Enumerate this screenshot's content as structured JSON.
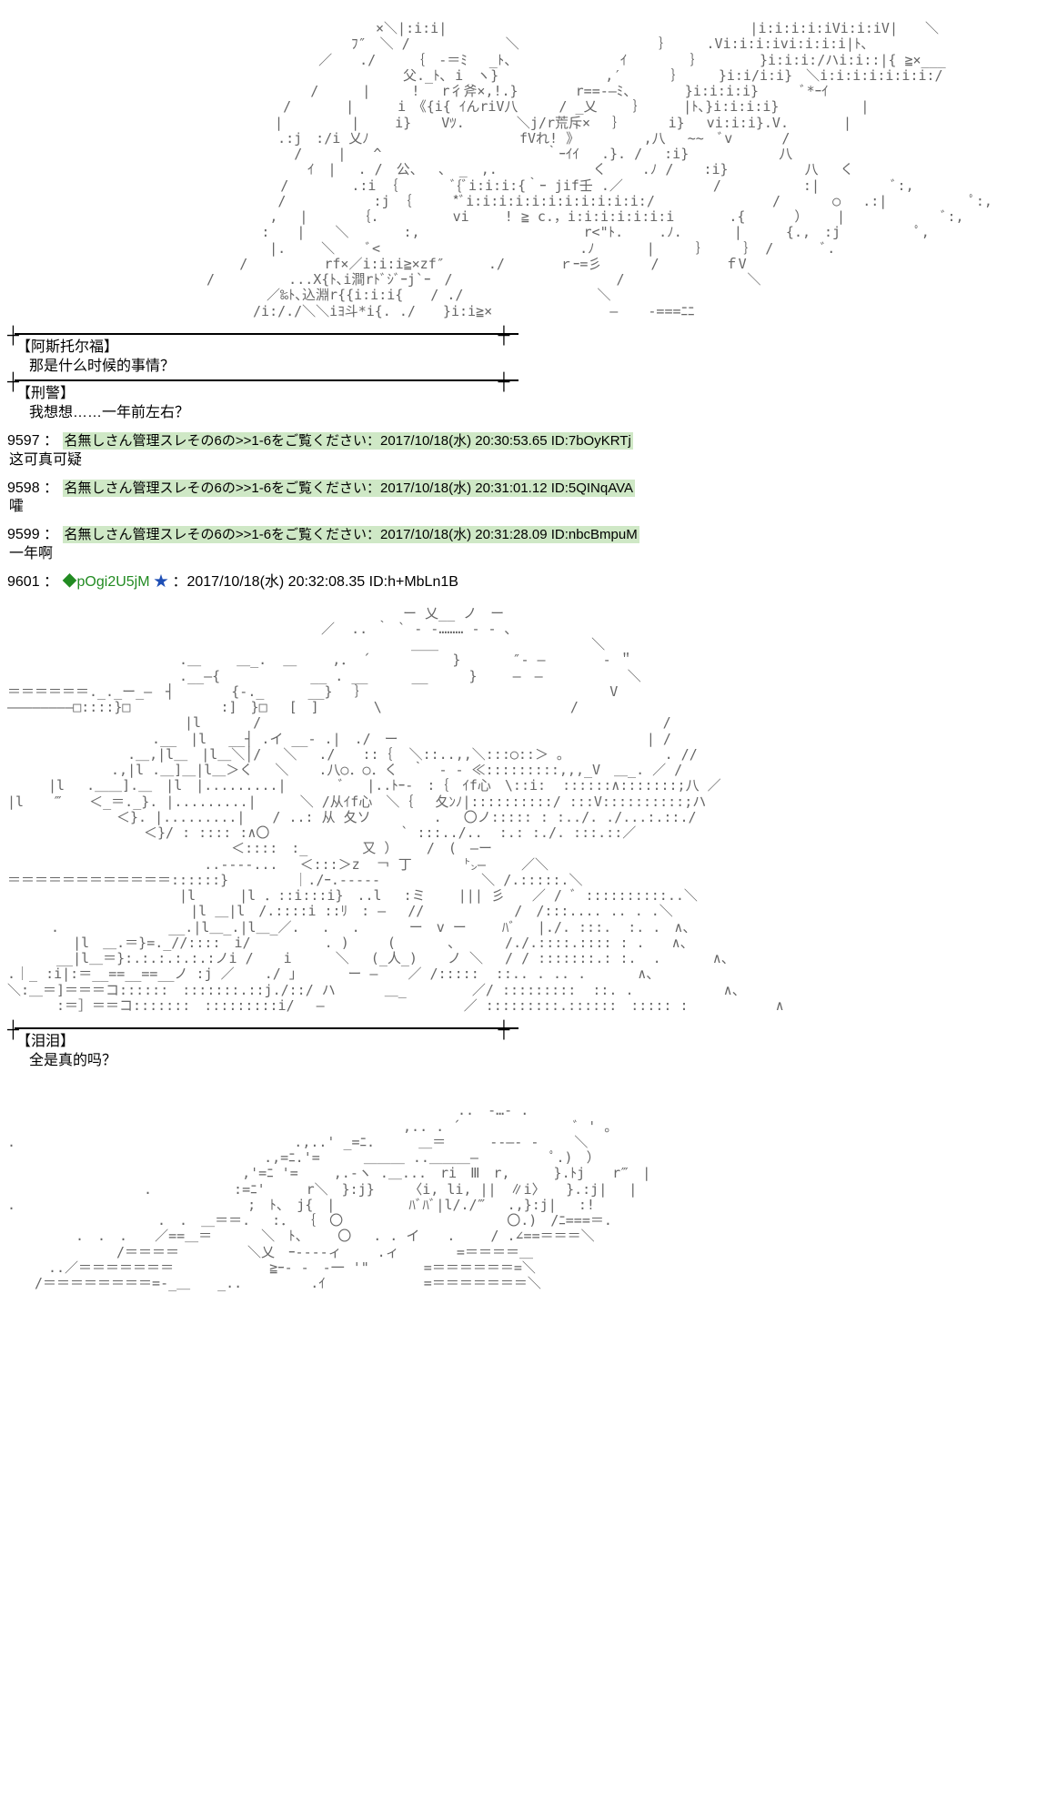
{
  "ascii1": "　　　　　　　　　　　　　　　　　　　　　　　　　　　×＼|:i:i|　　　　　　　　　　　　 　 　 　 　 　 　 |i:i:i:i:iVi:i:iV|　　＼\n　　　　　　　　　　　　　　　　　　　　　　　 　 ﾌ″　＼ / 　 　 　 　 ＼ 　 　 　 　 　 　 ｝　　　.Vi:i:i:ivi:i:i:i|ﾄ､\n　　　　　　　　　　　　　　　 　 　 　　　　／　　./　　 ｛　-＝ﾐ　 _ﾄ、　 　 　 　 　 ｲ　　　 　｝　　　　 }i:i:i:/ハi:i::|{ ≧×___\n　　　　　　　　　　　　　　　　　　　　　　　　　　　　　父._ﾄ､ i　ヽ}　　　　 　 　 ,′　　　 ｝　　　}i:i/i:i}　＼i:i:i:i:i:i:i:/\n　　　　　　　　　　　　 　 　 　 　 　 　 /　 　 |　　　!　 r彳斧×,!.}　　 　 r==-―ﾐ、　　　　}i:i:i:i}　　　ﾞ*ｰｲ\n　　　　　　　　　　　　　 　　　　　　 /　　　　|　 　 i　《{i{ ｲんriV八　　　/ _乂　　 ｝　 　 |ﾄ､}i:i:i:i}　　　　　　|\n　　　　　　　　　　　　　 　　　　　　|　　　　　|　　 i} 　 Vﾂ. 　 　 ＼j/r荒斥×　 ｝　　　 i}　 vi:i:i}.V.　　　　|\n　 　　　　　　　　　　　　　　　　 　 .:j　:/i 乂ﾉ　　　　 　 　 　 　 fVれ! 》　　　 　 ,八　 ~~　ﾞv　　　 /\n　　　　　　 　 　 　 　 　 　 　 　 　 /　　 |　　^　　　　　　　　　　　　｀ｰｲｲ　 .}. /　 :i}　　　　　　 八\n　　　　　　　　　　　　　　　　　　　　　　ｲ　|　 . /　公、　 ､　_　,.　　　　　　　く　　 .ﾉ / 　 :i}　　　　　 八　 く\n　　　　　 　 　 　 　 　 　 　 　 　 /　　　　 .:i ｛　　 　 ﾞ{ﾞi:i:i:{｀ｰ jif壬 .／　　　　　　 /　　　　　　:|　　 　　 ﾞ:,\n 　 　 　 　 　 　 　 　 　 　 　 　 / 　 　 　 　:j ｛　　　*ﾞi:i:i:i:i:i:i:i:i:i:i:/ 　 　 　 　 　 / 　 　 ○　 .:|　　　　　　ﾟ:,\n　 　 　 　 　 　 　 　 　 　 　 　 ,　 |　　　 ｛. 　 　 　 vi　 　! ≧ c.，i:i:i:i:i:i:i　　　　.{　　　 ）　　 |　　　　　　　ﾞ:,\n　　 　 　 　 　 　 　 　 　 　 　 :　　| 　 ＼　　　　:,　　　　　　　　　　　　r<\"ﾄ.　　 .ﾉ. 　 　 |　 　 {.,　:j 　 　 　 ﾟ,\n　　　　　　　　　　　　　　　　　 　 |.　　 ＼　　 ﾞ<　　　　　　　　　　　　　　 .ﾉ 　 　 |　　　｝　　　｝ / 　 　 ﾞ.\n　　 　 　 　 　 　 　 　 　 　 /　 　　　　rf×／i:i:i≧×zf″ 　　 ./　　　　ｒｰ=彡　　　 /　 　 　 ｆV\n　　　　　　　　　　　　　　 / 　 　 　 ...X{ﾄ､i澗rﾄﾞｼﾞｰj`ｰ　/　　　　　　　　　　　　/　　　　　　　　　＼\n　　　　　　　　　　　　　　　　　　　／‰ﾄ､込淵r{{i:i:i{　　/ ./ 　 　 　　　　　　＼\n　　　　　　　　　　　　　　　　　　/i:/./＼＼iﾖ斗*i{. ./　　}i:i≧× 　 　 　 　 　 ― 　 -===ﾆﾆ",
  "speaker1": "【阿斯托尔福】",
  "dialogue1": "那是什么时候的事情？",
  "speaker2": "【刑警】",
  "dialogue2": "我想想……一年前左右？",
  "posts": [
    {
      "no": "9597",
      "header": "名無しさん管理スレその6の>>1-6をご覧ください：2017/10/18(水) 20:30:53.65 ID:7bOyKRTj",
      "body": "这可真可疑"
    },
    {
      "no": "9598",
      "header": "名無しさん管理スレその6の>>1-6をご覧ください：2017/10/18(水) 20:31:01.12 ID:5QINqAVA",
      "body": "嚯"
    },
    {
      "no": "9599",
      "header": "名無しさん管理スレその6の>>1-6をご覧ください：2017/10/18(水) 20:31:28.09 ID:nbcBmpuM",
      "body": "一年啊"
    }
  ],
  "post9601": {
    "no": "9601",
    "trip": "◆pOgi2U5jM",
    "star": "★",
    "meta": "：2017/10/18(水) 20:32:08.35 ID:h+MbLn1B"
  },
  "ascii2": "　　　　　　　　　　　　　　　　　　　　　　　　　　　　　ー 乂__ ノ　ー\n　　　　　　　　　　　　　　　　　　　　　　　／  .. ｀ ` ‐ ‐……… ‐ ‐ ､\n　　　　　　　　　　　　　　　　　　　　　　　　　　　　　 ＿＿　　　　　　　　　　  ＼\n　　　　　　　　　　　　 .＿　　 ＿_.  ＿　　 ,． ´　　　　　　} 　 　 ″‐ ―　　 　 ‐ ＂\n　　　　　　　　　　　　 .__―{　　　　　　 __ . __　 　 __　　　}　　 ―　―　　　　 　 ＼\n＝＝＝＝＝＝._._ー_―　┤　　 　 {-._　 　 __}　 ｝　　　　　　　　 　 　 　 　 　 　 V\n――――――――□::::}□　　　　　　 :]　}□　 [　]　　　　\\ 　  　　　　　　　　　　　/\n　　　　　　　　　　　　　|l 　 　 /　　 　 　 　 　 　 　 　 　 　 　　　　　 　 　　　 　 /\n　　　　　　　　　　 .__　|l　 __┤ .イ __- .|　./　ー　　　　　 　 　　　　 　 　 　 　 | /\n　　　　　　　   .＿,|l＿　|l＿＼│/　 ＼　 ./　　::｛  ＼::..,,＼:::○::＞ ｡ 　 　　 　 　. //\n　　　　　　　 .,|l .＿]＿|l＿＞く　 ＼ 　 .八○．○．く　｀　- - ≪:::::::::,,,_V　＿_. ／ /\n　　　|l　 .＿＿].＿　|l　|.........| 　 　 ﾞ 　|..ﾄｰ-　:｛　ｲf心　\\::i:  ::::::∧:::::::;八 ／\n|l　  ‴　　＜_＝._}. |.........| 　 　＼ /从ｲf心　＼｛　 夂ﾝﾉ|::::::::::/ :::V::::::::::;ハ\n　　　　　　　　＜}. |.........|　　/ ..: 从 夂ソ　　　　 .　 〇ノ::::: : :../. ./...:.::./\n　　　　　　　　　　＜}/ : :::: :∧〇　　　　　　　　　 ` :::../..  :.: :./. :::.::／\n　　　　　　　　　　　　　 　   ＜::::　:_　　　　又 ）　 　/　(　―ー\n　 　 　 　 　 　 　 　 　 ..----... 　＜:::＞z  ￢ 丁 　 　 ㌧―　　 ／＼\n＝＝＝＝＝＝＝＝＝＝＝＝::::::}　 　 　 ｜./ｰ.-----　　 　 　 　 ＼ /.:::::.＼\n　　　　　　　　　　　　 |l　 　 |l ．::i:::i}　..l　 :ミ    ||| 彡　　／ / ﾞ ::::::::::..＼\n　　　　　　　　 　 　 　 |l ＿|l　/.::::i ::ﾘ　: ―　 //　　　　　　 /　/:::.... .. . .＼\n 　　 .　　 　　   　 __.|l＿_.|l＿_／.　 .　 .　　 　ー　v ー 　　ﾊﾞ　 |./. :::.  :. .　∧、　\n　　  　 |l　＿.＝}=._//::::　i/ 　 　 　 . )  　 ( 　 　 、 　 　/./.::::.:::: : .　　∧、\n　　　 __|l＿＝}:.:.:.:.:.:ノi / 　 i 　 　＼ 　(_人_) 　 ノ ＼　 / / :::::::.: :.  .　  　 ∧、\n.｜_ :i|:＝__==__==__ノ :j ／ 　 ./ ｣ 　 　 ー — 　 ／ /:::::  ::.. . .. .　　   ∧、\n＼:＿＝]＝＝＝コ::::::　:::::::.::j./::/ ハ　　　 ＿_　 　 　 ／/ :::::::::  ::. . 　  　  　 ∧、\n　　　 :＝］＝＝コ:::::::　:::::::::i/　 ― 　　　　　　　　　 ／ :::::::::.::::::　::::: :　　  　  　∧",
  "speaker3": "【泪泪】",
  "dialogue3": "全是真的吗？",
  "ascii3": "　　　　　　　　　　　　　　　　　　　　　　　　　　　　　　　　　..　‐…- .\n　　　　　　　　　　　　　　　　　　　　　　　　　　　　　,.. . ´ 　 　 　 　 　 ﾞ ' ｡\n.　　　　　　 　 　 　 　 　 　 　 　 　.,..' _=ﾆ.　　  ＿＝　 　 --―- -　　 ＼\n　　　　　　　　　　　　　　　　　   .,=ﾆ.'=　 　 ＿＿＿ ..＿＿＿― 　　 　　ﾟ.)　）\n　　　　　　　　　　　　　　　 　 ,'=ﾆ '=　 　,.-ヽ .＿...　ri　Ⅲ　r,　 　 }.ﾄj　　r‴　|\n　　　　　　　　　　.　　　　　　:=ﾆ'　　　r＼　}:j}　　　〈i, li, ||　∥i〉　　}.:j|　 |\n.　　　　　　　 　　 　 　 　　　 ;　ﾄ、　j{　| 　 　 　 ﾊﾞﾊﾞ|l/./‴　 .,}:j|　 :!\n　　　　　　　　　　　.　.　＿＝＝.　 :． ｛　〇　　　　　　　　　　　　〇.)　/ﾆ===＝.\n　　　　　.　.　.　　／==＿＝　　　 ＼　ﾄ、　　 〇　 . . イ　　.　 　/ .∠==＝＝＝＼\n　　　　　　　　/＝＝＝＝　　　　　＼乂　ｰ----ィ　　 .ィ       =＝＝＝＝＿\n　　　..／＝＝＝＝＝＝＝　　　　　　　≧ｰ- -　-一 '\"　　　　=＝＝＝＝＝＝=＼\n　　/＝＝＝＝＝＝＝＝=-_＿　　_..　　　　　.ｲ　　　　　　  =＝＝＝＝＝＝＝＼"
}
